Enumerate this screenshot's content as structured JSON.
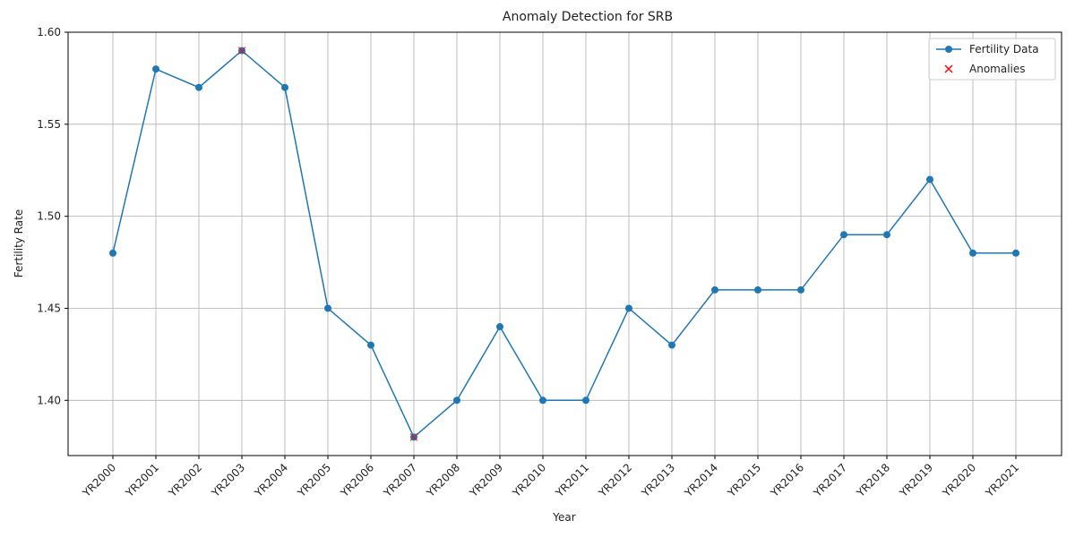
{
  "chart_data": {
    "type": "line",
    "title": "Anomaly Detection for SRB",
    "xlabel": "Year",
    "ylabel": "Fertility Rate",
    "categories": [
      "YR2000",
      "YR2001",
      "YR2002",
      "YR2003",
      "YR2004",
      "YR2005",
      "YR2006",
      "YR2007",
      "YR2008",
      "YR2009",
      "YR2010",
      "YR2011",
      "YR2012",
      "YR2013",
      "YR2014",
      "YR2015",
      "YR2016",
      "YR2017",
      "YR2018",
      "YR2019",
      "YR2020",
      "YR2021"
    ],
    "series": [
      {
        "name": "Fertility Data",
        "color": "#1f77b4",
        "marker": "circle",
        "values": [
          1.48,
          1.58,
          1.57,
          1.59,
          1.57,
          1.45,
          1.43,
          1.38,
          1.4,
          1.44,
          1.4,
          1.4,
          1.45,
          1.43,
          1.46,
          1.46,
          1.46,
          1.49,
          1.49,
          1.52,
          1.48,
          1.48
        ]
      },
      {
        "name": "Anomalies",
        "color": "#ff0000",
        "marker": "x",
        "points": [
          {
            "x": "YR2003",
            "y": 1.59
          },
          {
            "x": "YR2007",
            "y": 1.38
          }
        ]
      }
    ],
    "ylim": [
      1.37,
      1.6
    ],
    "yticks": [
      "1.40",
      "1.45",
      "1.50",
      "1.55",
      "1.60"
    ],
    "grid": true,
    "legend_position": "top-right"
  }
}
